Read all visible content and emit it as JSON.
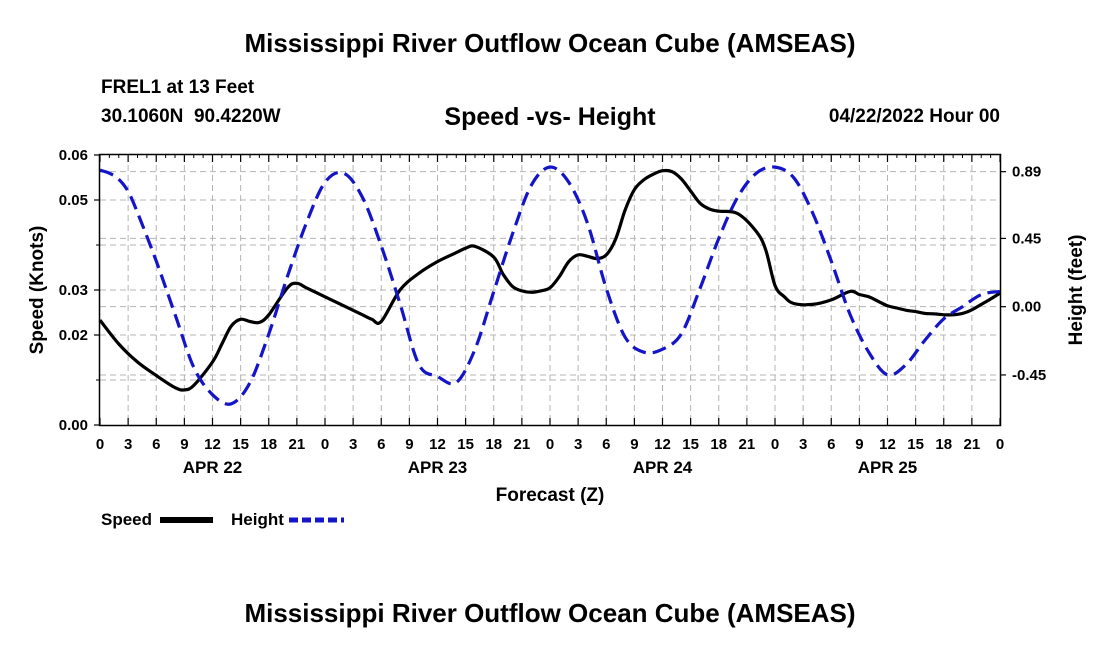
{
  "page": {
    "title_top": "Mississippi River Outflow Ocean Cube (AMSEAS)",
    "title_bottom": "Mississippi River Outflow Ocean Cube (AMSEAS)",
    "station": "FREL1 at 13 Feet",
    "coords": "30.1060N  90.4220W",
    "date": "04/22/2022 Hour 00"
  },
  "legend": {
    "speed_label": "Speed",
    "height_label": "Height"
  },
  "colors": {
    "speed": "#000000",
    "height": "#1414c8",
    "grid": "#b4b4b4"
  },
  "chart_data": {
    "type": "line",
    "title": "Speed -vs- Height",
    "xlabel": "Forecast (Z)",
    "ylabel": "Speed (Knots)",
    "y2label": "Height (feet)",
    "xlim": [
      0,
      96
    ],
    "ylim": [
      0,
      0.06
    ],
    "y2lim": [
      -0.78,
      1.0
    ],
    "x_ticks": [
      0,
      3,
      6,
      9,
      12,
      15,
      18,
      21,
      24,
      27,
      30,
      33,
      36,
      39,
      42,
      45,
      48,
      51,
      54,
      57,
      60,
      63,
      66,
      69,
      72,
      75,
      78,
      81,
      84,
      87,
      90,
      93,
      96
    ],
    "x_tick_labels": [
      "0",
      "3",
      "6",
      "9",
      "12",
      "15",
      "18",
      "21",
      "0",
      "3",
      "6",
      "9",
      "12",
      "15",
      "18",
      "21",
      "0",
      "3",
      "6",
      "9",
      "12",
      "15",
      "18",
      "21",
      "0",
      "3",
      "6",
      "9",
      "12",
      "15",
      "18",
      "21",
      "0"
    ],
    "day_labels": [
      {
        "x": 12,
        "label": "APR 22"
      },
      {
        "x": 36,
        "label": "APR 23"
      },
      {
        "x": 60,
        "label": "APR 24"
      },
      {
        "x": 84,
        "label": "APR 25"
      }
    ],
    "y_ticks": [
      0.0,
      0.02,
      0.03,
      0.05,
      0.06
    ],
    "y_tick_labels": [
      "0.00",
      "0.02",
      "0.03",
      "0.05",
      "0.06"
    ],
    "y2_ticks": [
      0.89,
      0.45,
      0.0,
      -0.45
    ],
    "y2_tick_labels": [
      "0.89",
      "0.45",
      "0.00",
      "-0.45"
    ],
    "grid": true,
    "series": [
      {
        "name": "Speed",
        "axis": "left",
        "style": "solid",
        "x": [
          0,
          2,
          4,
          6,
          8,
          9,
          10,
          12,
          13,
          14,
          15,
          16,
          17,
          18,
          20,
          21,
          22,
          24,
          26,
          27,
          28,
          29,
          30,
          32,
          34,
          36,
          38,
          39,
          40,
          42,
          43,
          44,
          45,
          46,
          47,
          48,
          49,
          50,
          51,
          52,
          53,
          54,
          55,
          56,
          57,
          58,
          59,
          60,
          61,
          62,
          63,
          64,
          65,
          66,
          68,
          70,
          71,
          72,
          73,
          74,
          76,
          78,
          80,
          81,
          82,
          83,
          84,
          85,
          86,
          87,
          88,
          89,
          90,
          91,
          92,
          93,
          94,
          95,
          96
        ],
        "y": [
          0.0233,
          0.018,
          0.014,
          0.011,
          0.0083,
          0.0078,
          0.0088,
          0.014,
          0.018,
          0.022,
          0.0235,
          0.023,
          0.0228,
          0.0245,
          0.0305,
          0.0315,
          0.0305,
          0.0285,
          0.0265,
          0.0255,
          0.0245,
          0.0235,
          0.023,
          0.03,
          0.0337,
          0.0363,
          0.0383,
          0.0393,
          0.0397,
          0.0373,
          0.0335,
          0.0308,
          0.0298,
          0.0295,
          0.0298,
          0.0305,
          0.033,
          0.0363,
          0.0378,
          0.0375,
          0.037,
          0.0378,
          0.0413,
          0.0477,
          0.0523,
          0.0545,
          0.0557,
          0.0565,
          0.0563,
          0.0547,
          0.052,
          0.0493,
          0.048,
          0.0475,
          0.047,
          0.043,
          0.039,
          0.031,
          0.0285,
          0.027,
          0.0268,
          0.0278,
          0.0297,
          0.029,
          0.0285,
          0.0275,
          0.0265,
          0.026,
          0.0255,
          0.0252,
          0.0248,
          0.0247,
          0.0245,
          0.0245,
          0.0248,
          0.0256,
          0.0268,
          0.028,
          0.0293
        ]
      },
      {
        "name": "Height",
        "axis": "right",
        "style": "dashed",
        "x": [
          0,
          1,
          2,
          3,
          4,
          6,
          8,
          10,
          12,
          14,
          16,
          18,
          20,
          22,
          24,
          26,
          28,
          30,
          32,
          34,
          36,
          38,
          40,
          42,
          44,
          46,
          48,
          50,
          52,
          54,
          56,
          58,
          60,
          62,
          64,
          66,
          68,
          70,
          72,
          74,
          76,
          78,
          80,
          82,
          84,
          86,
          88,
          90,
          92,
          94,
          96
        ],
        "y": [
          0.9,
          0.88,
          0.84,
          0.76,
          0.62,
          0.3,
          -0.05,
          -0.4,
          -0.58,
          -0.64,
          -0.5,
          -0.18,
          0.2,
          0.55,
          0.82,
          0.88,
          0.72,
          0.4,
          0.02,
          -0.38,
          -0.46,
          -0.5,
          -0.28,
          0.1,
          0.48,
          0.8,
          0.92,
          0.82,
          0.55,
          0.12,
          -0.2,
          -0.3,
          -0.28,
          -0.18,
          0.12,
          0.45,
          0.72,
          0.88,
          0.92,
          0.85,
          0.62,
          0.3,
          -0.05,
          -0.3,
          -0.45,
          -0.38,
          -0.22,
          -0.08,
          0.0,
          0.08,
          0.1
        ]
      }
    ]
  }
}
